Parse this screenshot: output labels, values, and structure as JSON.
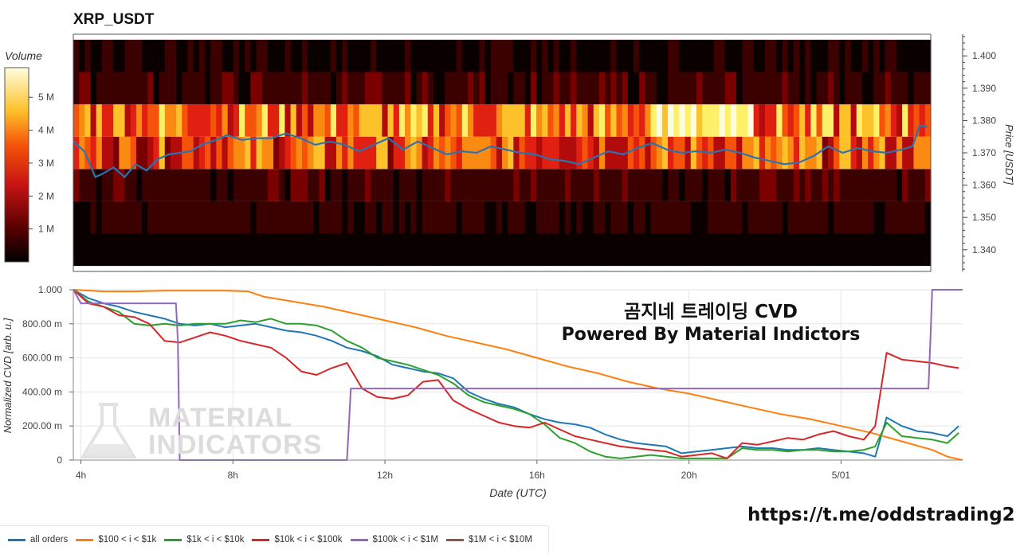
{
  "header": {
    "title": "XRP_USDT"
  },
  "watermark": {
    "line1": "MATERIAL",
    "line2": "INDICATORS"
  },
  "promo": {
    "line1": "곰지네 트레이딩 CVD",
    "line2": "Powered By Material Indictors"
  },
  "footer": {
    "url": "https://t.me/oddstrading2"
  },
  "colors": {
    "heat": [
      "#0a0000",
      "#3b0000",
      "#7a0000",
      "#b20b0b",
      "#e02010",
      "#f5520a",
      "#fb8a12",
      "#fdc22a",
      "#fff06a",
      "#fffde0"
    ],
    "price_line": "#2d72b0",
    "panel_border": "#888888",
    "grid": "#e6e6e6"
  },
  "chart_data": [
    {
      "type": "heatmap",
      "title": "XRP_USDT",
      "colorbar": {
        "label": "Volume",
        "ticks": [
          "1 M",
          "2 M",
          "3 M",
          "4 M",
          "5 M"
        ],
        "range": [
          0,
          5.9
        ]
      },
      "y_axis": {
        "label": "Price [USDT]",
        "ticks": [
          "1.340",
          "1.350",
          "1.360",
          "1.370",
          "1.380",
          "1.390",
          "1.400"
        ],
        "range": [
          1.3333,
          1.4067
        ]
      },
      "x_range_hours": [
        3.8,
        27.2
      ],
      "price_bins": [
        {
          "price": 1.34,
          "volume_m": 0.25
        },
        {
          "price": 1.35,
          "volume_m": 0.75
        },
        {
          "price": 1.36,
          "volume_m": 0.95
        },
        {
          "price": 1.37,
          "volume_m": 3.1
        },
        {
          "price": 1.38,
          "volume_m": 3.6
        },
        {
          "price": 1.39,
          "volume_m": 0.9
        },
        {
          "price": 1.4,
          "volume_m": 0.5
        }
      ],
      "bright_band_hours": [
        19.5,
        22.4
      ],
      "price_series": {
        "x_hours": [
          3.8,
          4.1,
          4.4,
          4.6,
          4.9,
          5.2,
          5.5,
          5.8,
          6.1,
          6.4,
          6.7,
          7.0,
          7.3,
          7.7,
          8.0,
          8.4,
          8.8,
          9.2,
          9.6,
          10.0,
          10.4,
          10.8,
          11.2,
          11.6,
          12.0,
          12.4,
          12.8,
          13.2,
          13.6,
          14.0,
          14.4,
          14.8,
          15.2,
          15.6,
          16.0,
          16.4,
          16.8,
          17.2,
          17.6,
          18.0,
          18.4,
          18.8,
          19.2,
          19.6,
          20.0,
          20.4,
          20.8,
          21.2,
          21.6,
          22.0,
          22.4,
          22.8,
          23.2,
          23.6,
          24.0,
          24.4,
          24.8,
          25.2,
          25.6,
          26.0,
          26.4,
          26.7,
          26.9,
          27.1
        ],
        "price": [
          1.3735,
          1.3705,
          1.3625,
          1.3635,
          1.3655,
          1.3625,
          1.3665,
          1.3645,
          1.368,
          1.3695,
          1.37,
          1.3705,
          1.3725,
          1.374,
          1.3755,
          1.374,
          1.3745,
          1.3745,
          1.376,
          1.3745,
          1.3725,
          1.3735,
          1.3725,
          1.3705,
          1.3725,
          1.3745,
          1.371,
          1.3735,
          1.3715,
          1.3695,
          1.3705,
          1.37,
          1.372,
          1.371,
          1.37,
          1.3695,
          1.368,
          1.3675,
          1.3665,
          1.3685,
          1.3705,
          1.3695,
          1.3715,
          1.373,
          1.371,
          1.37,
          1.3705,
          1.37,
          1.371,
          1.37,
          1.3685,
          1.3675,
          1.3665,
          1.367,
          1.369,
          1.372,
          1.37,
          1.3715,
          1.3705,
          1.37,
          1.371,
          1.372,
          1.3785,
          1.378
        ]
      }
    },
    {
      "type": "line",
      "xlabel": "Date (UTC)",
      "ylabel": "Normalized CVD [arb. u.]",
      "x_ticks": [
        {
          "label": "4h",
          "hours": 4
        },
        {
          "label": "8h",
          "hours": 8
        },
        {
          "label": "12h",
          "hours": 12
        },
        {
          "label": "16h",
          "hours": 16
        },
        {
          "label": "20h",
          "hours": 20
        },
        {
          "label": "5/01",
          "hours": 24
        }
      ],
      "y_ticks": [
        {
          "label": "0",
          "value": 0
        },
        {
          "label": "200.00 m",
          "value": 0.2
        },
        {
          "label": "400.00 m",
          "value": 0.4
        },
        {
          "label": "600.00 m",
          "value": 0.6
        },
        {
          "label": "800.00 m",
          "value": 0.8
        },
        {
          "label": "1.000",
          "value": 1.0
        }
      ],
      "xlim": [
        3.8,
        27.2
      ],
      "ylim": [
        0,
        1.0
      ],
      "legend_position": "bottom-left",
      "series": [
        {
          "name": "all orders",
          "color": "#1f77b4",
          "x": [
            3.8,
            4.2,
            4.6,
            5.0,
            5.4,
            5.8,
            6.2,
            6.6,
            7.0,
            7.4,
            7.8,
            8.2,
            8.6,
            9.0,
            9.4,
            9.8,
            10.2,
            10.6,
            11.0,
            11.4,
            11.8,
            12.2,
            12.6,
            13.0,
            13.4,
            13.8,
            14.2,
            14.6,
            15.0,
            15.4,
            15.8,
            16.2,
            16.6,
            17.0,
            17.4,
            17.8,
            18.2,
            18.6,
            19.0,
            19.4,
            19.8,
            20.2,
            20.6,
            21.0,
            21.4,
            21.8,
            22.2,
            22.6,
            23.0,
            23.4,
            23.8,
            24.2,
            24.6,
            24.9,
            25.2,
            25.6,
            26.0,
            26.4,
            26.8,
            27.1
          ],
          "y": [
            1.0,
            0.95,
            0.92,
            0.9,
            0.87,
            0.85,
            0.83,
            0.8,
            0.79,
            0.8,
            0.78,
            0.79,
            0.8,
            0.78,
            0.76,
            0.75,
            0.73,
            0.7,
            0.66,
            0.64,
            0.61,
            0.56,
            0.54,
            0.52,
            0.51,
            0.48,
            0.4,
            0.36,
            0.33,
            0.31,
            0.27,
            0.24,
            0.22,
            0.21,
            0.19,
            0.15,
            0.12,
            0.1,
            0.09,
            0.08,
            0.04,
            0.05,
            0.06,
            0.07,
            0.08,
            0.07,
            0.07,
            0.06,
            0.06,
            0.07,
            0.06,
            0.05,
            0.04,
            0.02,
            0.25,
            0.2,
            0.17,
            0.16,
            0.14,
            0.2
          ]
        },
        {
          "name": "$100 < i < $1k",
          "color": "#ff7f0e",
          "x": [
            3.8,
            4.6,
            5.4,
            6.2,
            7.0,
            7.8,
            8.4,
            8.8,
            9.6,
            10.4,
            11.2,
            12.0,
            12.8,
            13.6,
            14.4,
            15.2,
            16.0,
            16.8,
            17.6,
            18.4,
            19.2,
            20.0,
            20.8,
            21.6,
            22.4,
            23.2,
            24.0,
            24.8,
            25.6,
            26.4,
            26.8,
            27.2
          ],
          "y": [
            1.0,
            0.99,
            0.99,
            0.995,
            0.995,
            0.995,
            0.99,
            0.96,
            0.93,
            0.9,
            0.86,
            0.82,
            0.78,
            0.73,
            0.69,
            0.65,
            0.6,
            0.55,
            0.51,
            0.46,
            0.42,
            0.39,
            0.35,
            0.31,
            0.27,
            0.24,
            0.2,
            0.16,
            0.11,
            0.06,
            0.02,
            0.0
          ]
        },
        {
          "name": "$1k < i < $10k",
          "color": "#2ca02c",
          "x": [
            3.8,
            4.2,
            4.6,
            5.0,
            5.4,
            5.8,
            6.2,
            6.6,
            7.0,
            7.4,
            7.8,
            8.2,
            8.6,
            9.0,
            9.4,
            9.8,
            10.2,
            10.6,
            11.0,
            11.4,
            11.8,
            12.2,
            12.6,
            13.0,
            13.4,
            13.8,
            14.2,
            14.6,
            15.0,
            15.4,
            15.8,
            16.2,
            16.6,
            17.0,
            17.4,
            17.8,
            18.2,
            18.6,
            19.0,
            19.4,
            19.8,
            20.2,
            20.6,
            21.0,
            21.4,
            21.8,
            22.2,
            22.6,
            23.0,
            23.4,
            23.8,
            24.2,
            24.6,
            24.9,
            25.2,
            25.6,
            26.0,
            26.4,
            26.8,
            27.1
          ],
          "y": [
            1.0,
            0.93,
            0.9,
            0.87,
            0.8,
            0.79,
            0.8,
            0.79,
            0.8,
            0.8,
            0.8,
            0.82,
            0.81,
            0.83,
            0.8,
            0.8,
            0.79,
            0.76,
            0.7,
            0.66,
            0.6,
            0.58,
            0.56,
            0.53,
            0.5,
            0.45,
            0.38,
            0.34,
            0.32,
            0.3,
            0.27,
            0.21,
            0.13,
            0.1,
            0.05,
            0.02,
            0.01,
            0.02,
            0.03,
            0.02,
            0.01,
            0.01,
            0.01,
            0.01,
            0.07,
            0.06,
            0.06,
            0.05,
            0.06,
            0.06,
            0.05,
            0.05,
            0.06,
            0.08,
            0.22,
            0.14,
            0.13,
            0.12,
            0.1,
            0.16
          ]
        },
        {
          "name": "$10k < i < $100k",
          "color": "#d62728",
          "x": [
            3.8,
            4.2,
            4.6,
            5.0,
            5.4,
            5.8,
            6.2,
            6.6,
            7.0,
            7.4,
            7.8,
            8.2,
            8.6,
            9.0,
            9.4,
            9.8,
            10.2,
            10.6,
            11.0,
            11.4,
            11.8,
            12.2,
            12.6,
            13.0,
            13.4,
            13.8,
            14.2,
            14.6,
            15.0,
            15.4,
            15.8,
            16.2,
            16.6,
            17.0,
            17.4,
            17.8,
            18.2,
            18.6,
            19.0,
            19.4,
            19.8,
            20.2,
            20.6,
            21.0,
            21.4,
            21.8,
            22.2,
            22.6,
            23.0,
            23.4,
            23.8,
            24.2,
            24.6,
            24.9,
            25.2,
            25.6,
            26.0,
            26.4,
            26.8,
            27.1
          ],
          "y": [
            1.0,
            0.92,
            0.9,
            0.85,
            0.84,
            0.8,
            0.7,
            0.69,
            0.72,
            0.75,
            0.73,
            0.7,
            0.68,
            0.66,
            0.6,
            0.52,
            0.5,
            0.54,
            0.57,
            0.42,
            0.37,
            0.36,
            0.38,
            0.46,
            0.47,
            0.35,
            0.3,
            0.26,
            0.22,
            0.2,
            0.19,
            0.22,
            0.18,
            0.14,
            0.12,
            0.1,
            0.08,
            0.07,
            0.06,
            0.05,
            0.02,
            0.03,
            0.04,
            0.01,
            0.1,
            0.09,
            0.11,
            0.13,
            0.12,
            0.15,
            0.17,
            0.14,
            0.12,
            0.2,
            0.63,
            0.59,
            0.58,
            0.57,
            0.55,
            0.54
          ]
        },
        {
          "name": "$100k < i < $1M",
          "color": "#9467bd",
          "x": [
            3.8,
            4.0,
            6.5,
            6.55,
            6.6,
            11.0,
            11.05,
            11.1,
            26.3,
            26.35,
            26.4,
            27.2
          ],
          "y": [
            1.0,
            0.92,
            0.92,
            0.7,
            0.0,
            0.0,
            0.2,
            0.42,
            0.42,
            0.7,
            1.0,
            1.0
          ]
        },
        {
          "name": "$1M < i < $10M",
          "color": "#8c564b",
          "x": [],
          "y": []
        }
      ]
    }
  ]
}
